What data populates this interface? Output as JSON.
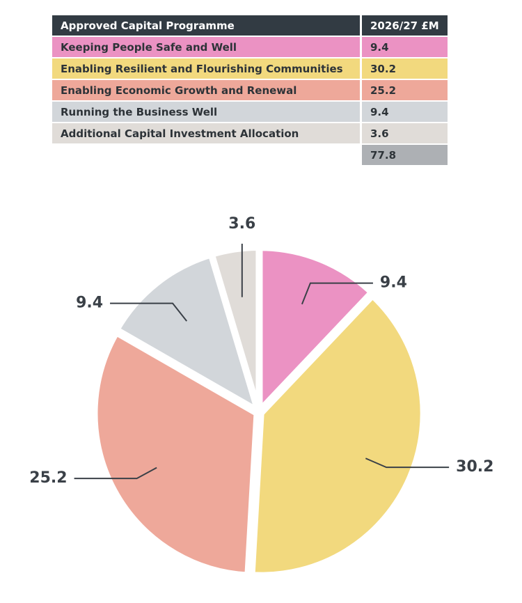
{
  "table": {
    "header": [
      "Approved Capital Programme",
      "2026/27 £M"
    ],
    "rows": [
      [
        "Keeping People Safe and Well",
        "9.4"
      ],
      [
        "Enabling Resilient and Flourishing Communities",
        "30.2"
      ],
      [
        "Enabling Economic Growth and Renewal",
        "25.2"
      ],
      [
        "Running the Business Well",
        "9.4"
      ],
      [
        "Additional Capital Investment Allocation",
        "3.6"
      ]
    ],
    "total": "77.8"
  },
  "chart_data": {
    "type": "pie",
    "values": [
      9.4,
      30.2,
      25.2,
      9.4,
      3.6
    ],
    "colors": [
      "#eb92c3",
      "#f2d97e",
      "#eea89a",
      "#d2d6da",
      "#e0dcd8"
    ]
  }
}
